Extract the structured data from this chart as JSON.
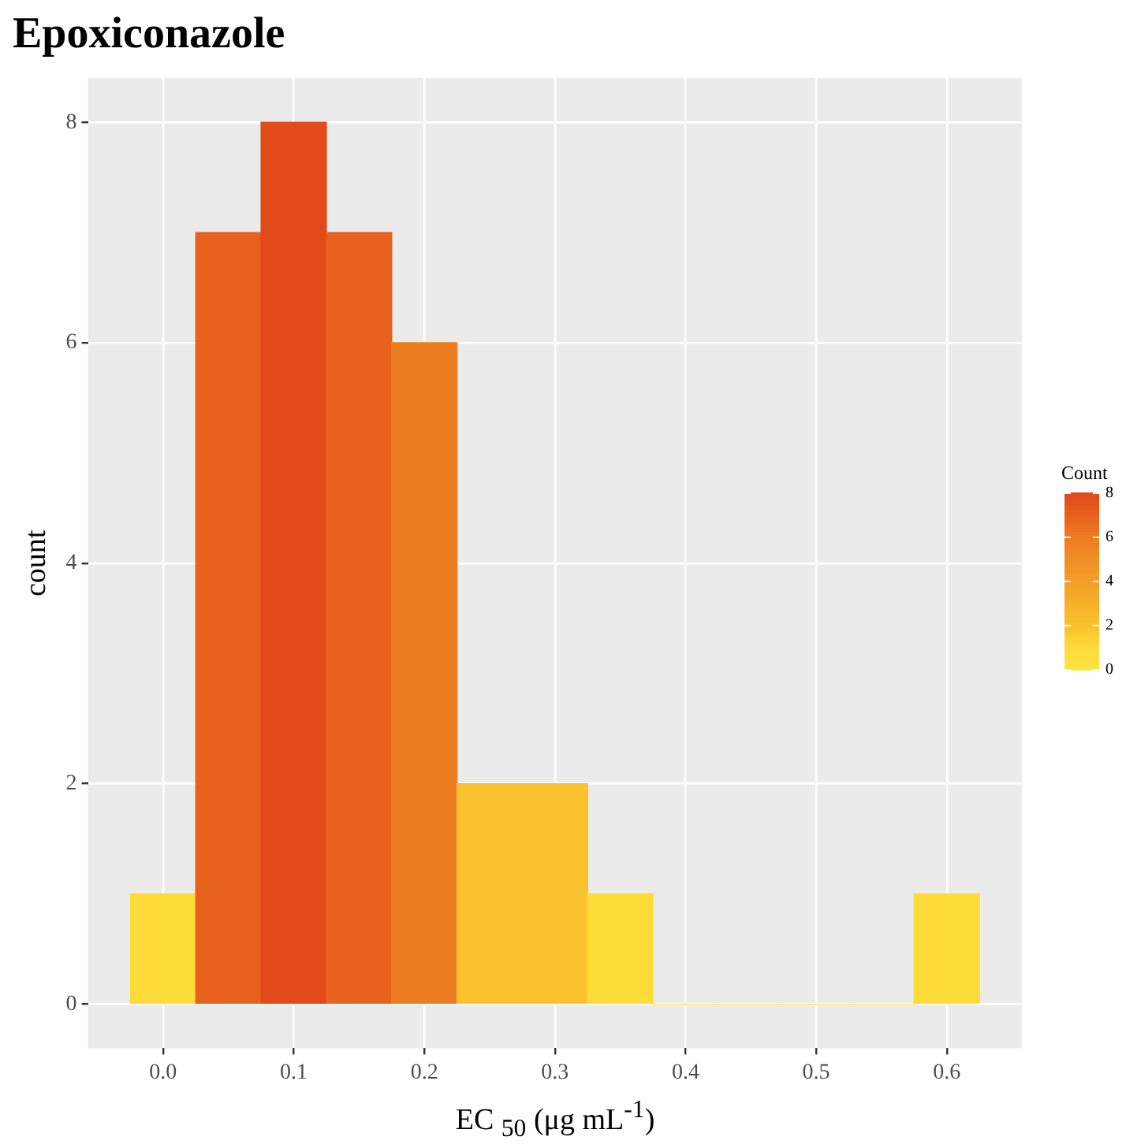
{
  "chart_data": {
    "type": "histogram",
    "title": "Epoxiconazole",
    "xlabel": "EC $_{50}$ (μg mL$^{-1}$)",
    "ylabel": "count",
    "bins": [
      -0.025,
      0.025,
      0.075,
      0.125,
      0.175,
      0.225,
      0.275,
      0.325,
      0.375,
      0.425,
      0.475,
      0.525,
      0.575,
      0.625
    ],
    "values": [
      1,
      7,
      8,
      7,
      6,
      2,
      2,
      1,
      0,
      0,
      0,
      0,
      1
    ],
    "colors": [
      "#fddc3a",
      "#e8621d",
      "#e24a1a",
      "#e8621d",
      "#ee7d22",
      "#f9c22e",
      "#f9c22e",
      "#fddc3a",
      "#fee440",
      "#fee440",
      "#fee440",
      "#fee440",
      "#fddc3a"
    ],
    "xlim": [
      -0.0575,
      0.6575
    ],
    "xticks": [
      {
        "value": 0,
        "label": "0.0"
      },
      {
        "value": 0.1,
        "label": "0.1"
      },
      {
        "value": 0.2,
        "label": "0.2"
      },
      {
        "value": 0.3,
        "label": "0.3"
      },
      {
        "value": 0.4,
        "label": "0.4"
      },
      {
        "value": 0.5,
        "label": "0.5"
      },
      {
        "value": 0.6,
        "label": "0.6"
      }
    ],
    "ylim": [
      -0.4,
      8.4
    ],
    "yticks": [
      0,
      2,
      4,
      6,
      8
    ],
    "grid": true,
    "clabel": "Count",
    "clim": [
      0,
      8
    ],
    "cticks": [
      0,
      2,
      4,
      6,
      8
    ]
  }
}
